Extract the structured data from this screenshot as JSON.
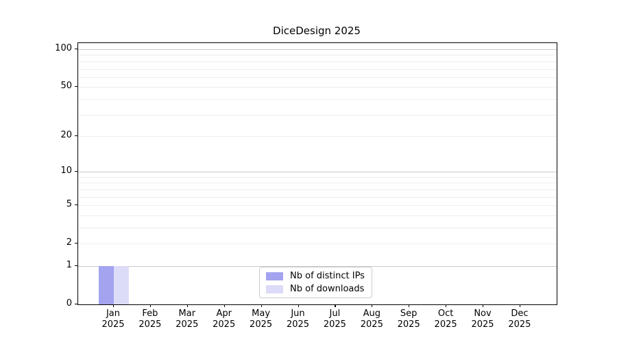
{
  "figure": {
    "background": "#ffffff",
    "text_color": "#000000"
  },
  "chart_data": {
    "type": "bar",
    "title": "DiceDesign 2025",
    "x": {
      "months": [
        "Jan",
        "Feb",
        "Mar",
        "Apr",
        "May",
        "Jun",
        "Jul",
        "Aug",
        "Sep",
        "Oct",
        "Nov",
        "Dec"
      ],
      "year": "2025"
    },
    "series": [
      {
        "name": "Nb of distinct IPs",
        "color": "#a3a3f0",
        "values": [
          1,
          0,
          0,
          0,
          0,
          0,
          0,
          0,
          0,
          0,
          0,
          0
        ]
      },
      {
        "name": "Nb of downloads",
        "color": "#dcdcf8",
        "values": [
          1,
          0,
          0,
          0,
          0,
          0,
          0,
          0,
          0,
          0,
          0,
          0
        ]
      }
    ],
    "y_axis": {
      "scale": "log1p",
      "tick_values": [
        0,
        1,
        2,
        5,
        10,
        20,
        50,
        100
      ],
      "tick_labels": [
        "0",
        "1",
        "2",
        "5",
        "10",
        "20",
        "50",
        "100"
      ],
      "major_grid": [
        1,
        10,
        100
      ],
      "minor_grid": [
        2,
        3,
        4,
        5,
        6,
        7,
        8,
        9,
        20,
        30,
        40,
        50,
        60,
        70,
        80,
        90
      ],
      "ylim": [
        0,
        112
      ]
    },
    "grid": {
      "major_color": "#c8c8c8",
      "minor_color": "#ededed",
      "on": true
    },
    "legend": {
      "position": "lower-center-inside",
      "entries": [
        "Nb of distinct IPs",
        "Nb of downloads"
      ]
    }
  }
}
